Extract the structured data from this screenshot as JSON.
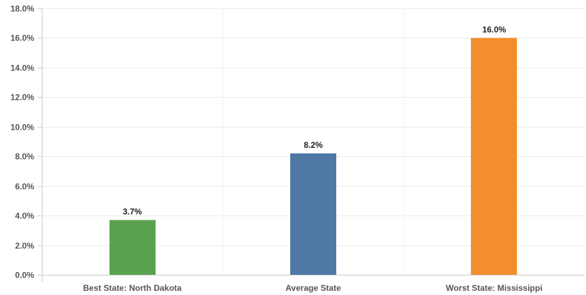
{
  "chart_data": {
    "type": "bar",
    "categories": [
      "Best State: North Dakota",
      "Average State",
      "Worst State: Mississippi"
    ],
    "values": [
      3.7,
      8.2,
      16.0
    ],
    "value_labels": [
      "3.7%",
      "8.2%",
      "16.0%"
    ],
    "colors": [
      "#5aa24f",
      "#4e79a7",
      "#f28e2b"
    ],
    "ylim": [
      0,
      18
    ],
    "yticks": [
      0,
      2,
      4,
      6,
      8,
      10,
      12,
      14,
      16,
      18
    ],
    "ytick_labels": [
      "0.0%",
      "2.0%",
      "4.0%",
      "6.0%",
      "8.0%",
      "10.0%",
      "12.0%",
      "14.0%",
      "16.0%",
      "18.0%"
    ],
    "grid": true,
    "title": "",
    "xlabel": "",
    "ylabel": ""
  }
}
